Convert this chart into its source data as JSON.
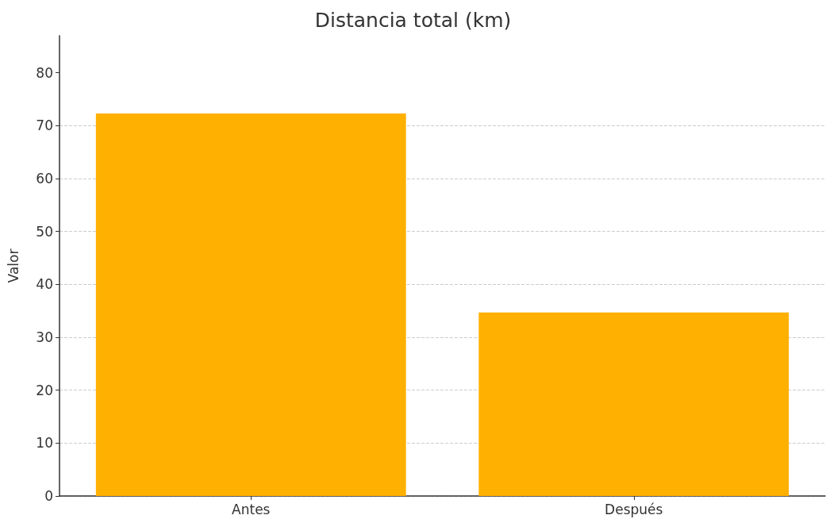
{
  "chart_data": {
    "type": "bar",
    "title": "Distancia total (km)",
    "ylabel": "Valor",
    "categories": [
      "Antes",
      "Después"
    ],
    "values": [
      72.3,
      34.7
    ],
    "color": "#ffb000",
    "ylim": [
      0,
      87
    ],
    "yticks": [
      0,
      10,
      20,
      30,
      40,
      50,
      60,
      70,
      80
    ],
    "grid": true
  }
}
